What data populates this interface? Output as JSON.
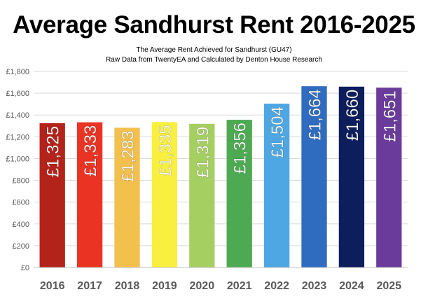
{
  "title": "Average Sandhurst Rent 2016-2025",
  "subtitle_lines": [
    "The Average Rent Achieved for Sandhurst (GU47)",
    "Raw Data from TwentyEA and Calculated by Denton House Research"
  ],
  "chart_data": {
    "type": "bar",
    "categories": [
      "2016",
      "2017",
      "2018",
      "2019",
      "2020",
      "2021",
      "2022",
      "2023",
      "2024",
      "2025"
    ],
    "values": [
      1325,
      1333,
      1283,
      1335,
      1319,
      1356,
      1504,
      1664,
      1660,
      1651
    ],
    "data_labels": [
      "£1,325",
      "£1,333",
      "£1,283",
      "£1,335",
      "£1,319",
      "£1,356",
      "£1,504",
      "£1,664",
      "£1,660",
      "£1,651"
    ],
    "colors": [
      "#b3231a",
      "#ea3323",
      "#f3bf4d",
      "#f9ef3f",
      "#a6cf62",
      "#4daa53",
      "#4ea7e2",
      "#2f6cbf",
      "#0d1e5c",
      "#6a3b9a"
    ],
    "label_colors": [
      "#ffffff",
      "#ffffff",
      "#ffffff",
      "#ffffff",
      "#ffffff",
      "#ffffff",
      "#ffffff",
      "#ffffff",
      "#ffffff",
      "#ffffff"
    ],
    "ylim": [
      0,
      1800
    ],
    "yticks": [
      0,
      200,
      400,
      600,
      800,
      1000,
      1200,
      1400,
      1600,
      1800
    ],
    "ytick_labels": [
      "£0",
      "£200",
      "£400",
      "£600",
      "£800",
      "£1,000",
      "£1,200",
      "£1,400",
      "£1,600",
      "£1,800"
    ],
    "grid": true,
    "xlabel": "",
    "ylabel": ""
  }
}
